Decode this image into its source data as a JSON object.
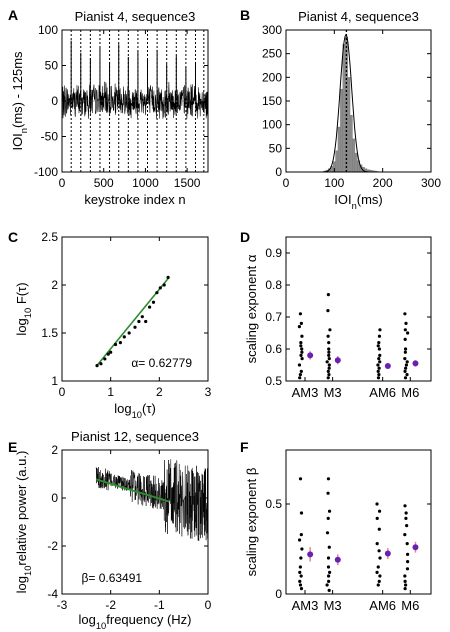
{
  "chart_data": [
    {
      "panel_label": "A",
      "type": "line",
      "title": "Pianist 4, sequence3",
      "xlabel": "keystroke index n",
      "ylabel_main": "IOI",
      "ylabel_sub": "n",
      "ylabel_tail": "(ms) - 125ms",
      "xlim": [
        0,
        1750
      ],
      "ylim": [
        -100,
        100
      ],
      "xticks": [
        0,
        500,
        1000,
        1500
      ],
      "yticks": [
        -100,
        -50,
        0,
        50,
        100
      ],
      "series_color": "#000000",
      "separator_color": "#000000",
      "separators": [
        0,
        110,
        225,
        340,
        455,
        570,
        680,
        795,
        910,
        1025,
        1140,
        1255,
        1370,
        1485,
        1600,
        1700
      ],
      "spikes": [
        {
          "x": 110,
          "y": 85
        },
        {
          "x": 225,
          "y": 68
        },
        {
          "x": 340,
          "y": 60
        },
        {
          "x": 455,
          "y": 75
        },
        {
          "x": 570,
          "y": 55
        },
        {
          "x": 680,
          "y": 80
        },
        {
          "x": 795,
          "y": 62
        },
        {
          "x": 910,
          "y": 70
        },
        {
          "x": 1025,
          "y": 58
        },
        {
          "x": 1140,
          "y": 72
        },
        {
          "x": 1255,
          "y": 52
        },
        {
          "x": 1370,
          "y": 64
        },
        {
          "x": 1485,
          "y": 48
        },
        {
          "x": 1600,
          "y": 55
        }
      ],
      "noise_amplitude": 22
    },
    {
      "panel_label": "B",
      "type": "bar",
      "title": "Pianist 4, sequence3",
      "xlabel_main": "IOI",
      "xlabel_sub": "n",
      "xlabel_tail": "(ms)",
      "xlim": [
        0,
        300
      ],
      "ylim": [
        0,
        300
      ],
      "xticks": [
        0,
        100,
        200,
        300
      ],
      "yticks": [
        0,
        50,
        100,
        150,
        200,
        250,
        300
      ],
      "bar_color": "#8c8c8c",
      "fit_color": "#000000",
      "mean_line_x": 125,
      "bins": [
        {
          "x": 80,
          "v": 2
        },
        {
          "x": 85,
          "v": 4
        },
        {
          "x": 90,
          "v": 7
        },
        {
          "x": 95,
          "v": 12
        },
        {
          "x": 100,
          "v": 22
        },
        {
          "x": 105,
          "v": 45
        },
        {
          "x": 110,
          "v": 95
        },
        {
          "x": 115,
          "v": 175
        },
        {
          "x": 120,
          "v": 270
        },
        {
          "x": 125,
          "v": 285
        },
        {
          "x": 130,
          "v": 200
        },
        {
          "x": 135,
          "v": 120
        },
        {
          "x": 140,
          "v": 70
        },
        {
          "x": 145,
          "v": 40
        },
        {
          "x": 150,
          "v": 24
        },
        {
          "x": 155,
          "v": 15
        },
        {
          "x": 160,
          "v": 10
        },
        {
          "x": 165,
          "v": 7
        },
        {
          "x": 170,
          "v": 5
        },
        {
          "x": 175,
          "v": 4
        },
        {
          "x": 180,
          "v": 3
        },
        {
          "x": 185,
          "v": 2
        },
        {
          "x": 190,
          "v": 1
        }
      ],
      "bin_width": 5
    },
    {
      "panel_label": "C",
      "type": "scatter",
      "xlabel_main": "log",
      "xlabel_sub": "10",
      "xlabel_tail": "(τ)",
      "ylabel_main": "log",
      "ylabel_sub": "10",
      "ylabel_tail": " F(τ)",
      "xlim": [
        0,
        3
      ],
      "ylim": [
        1,
        2.5
      ],
      "xticks": [
        0,
        1,
        2,
        3
      ],
      "yticks": [
        1,
        1.5,
        2,
        2.5
      ],
      "point_color": "#000000",
      "fit_color": "#2e8b2e",
      "annotation": "α= 0.62779",
      "fit_line": [
        [
          0.7,
          1.15
        ],
        [
          2.2,
          2.08
        ]
      ],
      "points": [
        [
          0.72,
          1.16
        ],
        [
          0.8,
          1.18
        ],
        [
          0.88,
          1.23
        ],
        [
          0.95,
          1.28
        ],
        [
          1.0,
          1.3
        ],
        [
          1.1,
          1.38
        ],
        [
          1.2,
          1.4
        ],
        [
          1.28,
          1.46
        ],
        [
          1.38,
          1.5
        ],
        [
          1.5,
          1.56
        ],
        [
          1.58,
          1.62
        ],
        [
          1.65,
          1.67
        ],
        [
          1.72,
          1.62
        ],
        [
          1.8,
          1.77
        ],
        [
          1.88,
          1.82
        ],
        [
          1.95,
          1.92
        ],
        [
          2.02,
          1.97
        ],
        [
          2.1,
          2.0
        ],
        [
          2.18,
          2.08
        ]
      ]
    },
    {
      "panel_label": "D",
      "type": "scatter",
      "ylabel": "scaling exponent  α",
      "ylim": [
        0.5,
        0.95
      ],
      "yticks": [
        0.5,
        0.6,
        0.7,
        0.8,
        0.9
      ],
      "point_color": "#000000",
      "mean_color": "#6a1fb5",
      "err_color": "#e08a8a",
      "groups": [
        {
          "label": "AM3",
          "pos": 0.95,
          "mean": 0.58,
          "err": 0.013,
          "values": [
            0.71,
            0.68,
            0.67,
            0.64,
            0.62,
            0.61,
            0.6,
            0.59,
            0.58,
            0.57,
            0.55,
            0.53,
            0.52,
            0.51
          ]
        },
        {
          "label": "M3",
          "pos": 1.75,
          "mean": 0.565,
          "err": 0.013,
          "values": [
            0.77,
            0.72,
            0.66,
            0.64,
            0.62,
            0.6,
            0.59,
            0.58,
            0.57,
            0.56,
            0.55,
            0.54,
            0.53,
            0.52,
            0.51
          ]
        },
        {
          "label": "AM6",
          "pos": 3.2,
          "mean": 0.547,
          "err": 0.008,
          "values": [
            0.66,
            0.64,
            0.62,
            0.61,
            0.6,
            0.58,
            0.57,
            0.56,
            0.55,
            0.54,
            0.53,
            0.52,
            0.51
          ]
        },
        {
          "label": "M6",
          "pos": 4.0,
          "mean": 0.555,
          "err": 0.01,
          "values": [
            0.71,
            0.68,
            0.66,
            0.65,
            0.63,
            0.6,
            0.59,
            0.57,
            0.56,
            0.55,
            0.54,
            0.53,
            0.52,
            0.51
          ]
        }
      ],
      "xlim": [
        0.4,
        4.6
      ]
    },
    {
      "panel_label": "E",
      "type": "line",
      "title": "Pianist 12, sequence3",
      "xlabel_main": "log",
      "xlabel_sub": "10",
      "xlabel_tail": "frequency (Hz)",
      "ylabel_main": "log",
      "ylabel_sub": "10",
      "ylabel_tail": "relative power (a.u.)",
      "xlim": [
        -3,
        0
      ],
      "ylim": [
        -4,
        2
      ],
      "xticks": [
        -3,
        -2,
        -1,
        0
      ],
      "yticks": [
        -4,
        -2,
        0,
        2
      ],
      "series_color": "#000000",
      "fit_color": "#2e8b2e",
      "annotation": "β= 0.63491",
      "fit_line": [
        [
          -2.3,
          0.78
        ],
        [
          -0.8,
          -0.15
        ]
      ],
      "x_start": -2.3
    },
    {
      "panel_label": "F",
      "type": "scatter",
      "ylabel": "scaling exponent  β",
      "ylim": [
        0,
        0.8
      ],
      "yticks": [
        0,
        0.5
      ],
      "point_color": "#000000",
      "mean_color": "#6a1fb5",
      "err_color": "#e08a8a",
      "groups": [
        {
          "label": "AM3",
          "pos": 0.95,
          "mean": 0.22,
          "err": 0.04,
          "values": [
            0.64,
            0.45,
            0.33,
            0.3,
            0.25,
            0.2,
            0.15,
            0.12,
            0.1,
            0.07,
            0.05,
            0.03
          ]
        },
        {
          "label": "M3",
          "pos": 1.75,
          "mean": 0.19,
          "err": 0.03,
          "values": [
            0.64,
            0.56,
            0.46,
            0.42,
            0.34,
            0.26,
            0.2,
            0.15,
            0.12,
            0.1,
            0.07,
            0.05,
            0.02
          ]
        },
        {
          "label": "AM6",
          "pos": 3.2,
          "mean": 0.225,
          "err": 0.03,
          "values": [
            0.5,
            0.46,
            0.42,
            0.36,
            0.28,
            0.24,
            0.2,
            0.15,
            0.12,
            0.1,
            0.07,
            0.05
          ]
        },
        {
          "label": "M6",
          "pos": 4.0,
          "mean": 0.26,
          "err": 0.03,
          "values": [
            0.49,
            0.45,
            0.42,
            0.38,
            0.33,
            0.28,
            0.22,
            0.18,
            0.14,
            0.1,
            0.07,
            0.05,
            0.03
          ]
        }
      ],
      "xlim": [
        0.4,
        4.6
      ]
    }
  ]
}
